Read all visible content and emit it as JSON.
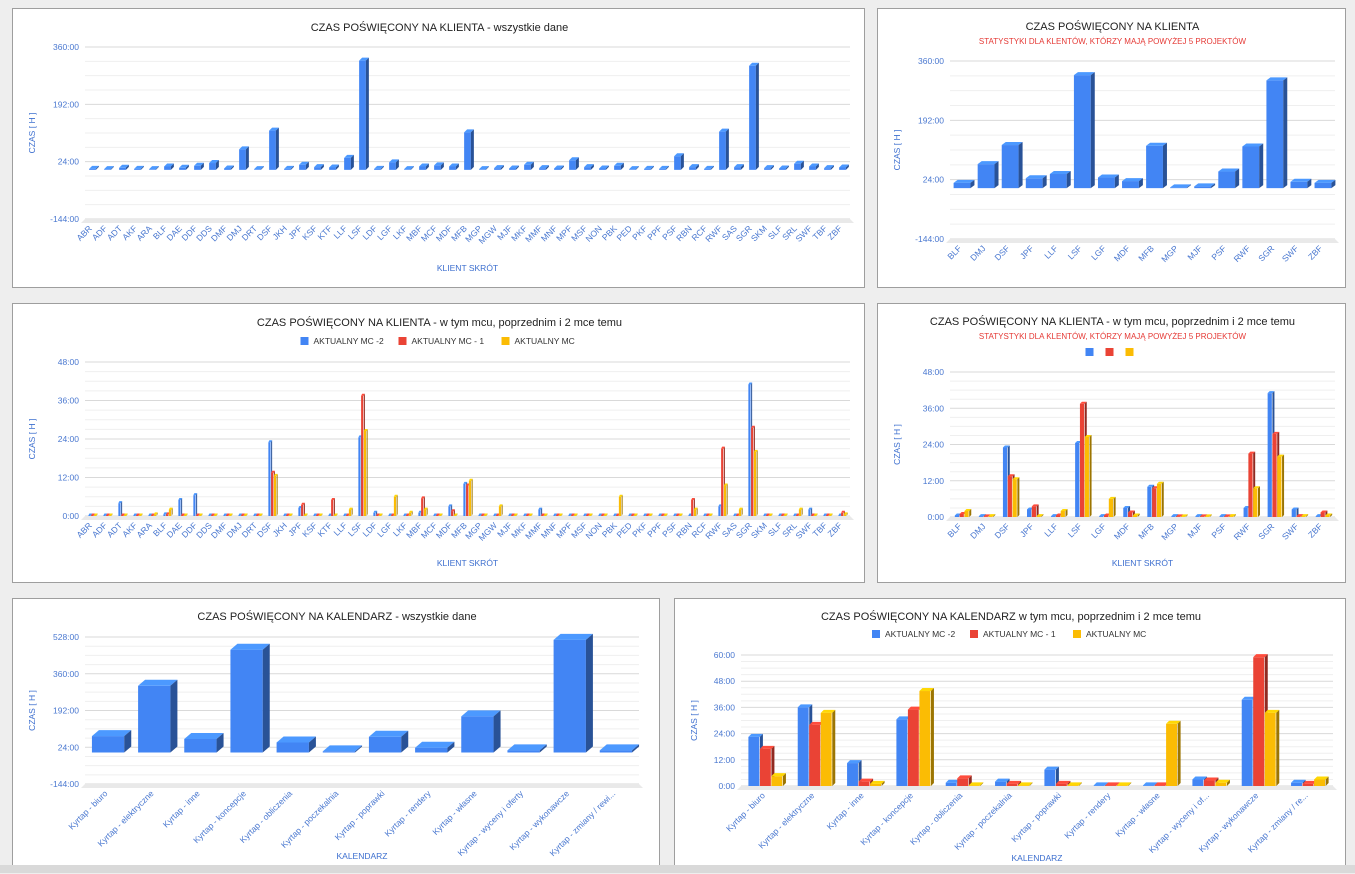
{
  "chart_data": [
    {
      "id": "c1",
      "type": "bar",
      "title": "CZAS POŚWIĘCONY NA KLIENTA - wszystkie dane",
      "subtitle": "",
      "xlabel": "KLIENT SKRÓT",
      "ylabel": "CZAS [ H ]",
      "yticks": [
        "-144:00",
        "24:00",
        "192:00",
        "360:00"
      ],
      "ylim": [
        -144,
        360
      ],
      "categories": [
        "ABR",
        "ADF",
        "ADT",
        "AKF",
        "ARA",
        "BLF",
        "DAE",
        "DDF",
        "DDS",
        "DMF",
        "DMJ",
        "DRT",
        "DSF",
        "JKH",
        "JPF",
        "KSF",
        "KTF",
        "LLF",
        "LSF",
        "LDF",
        "LGF",
        "LKF",
        "MBF",
        "MCF",
        "MDF",
        "MFB",
        "MGP",
        "MGW",
        "MJF",
        "MKF",
        "MMF",
        "MNF",
        "MPF",
        "MSF",
        "NON",
        "PBK",
        "PED",
        "PKF",
        "PPF",
        "PSF",
        "RBN",
        "RCF",
        "RWF",
        "SAS",
        "SGR",
        "SKM",
        "SLF",
        "SRL",
        "SWF",
        "TBF",
        "ZBF"
      ],
      "series": [
        {
          "color": "#4285f4",
          "values": [
            3,
            2,
            6,
            3,
            2,
            10,
            6,
            12,
            20,
            4,
            60,
            2,
            115,
            3,
            15,
            8,
            7,
            35,
            320,
            3,
            22,
            2,
            10,
            13,
            10,
            110,
            2,
            5,
            4,
            15,
            5,
            4,
            28,
            8,
            4,
            12,
            2,
            3,
            3,
            40,
            8,
            3,
            112,
            8,
            305,
            5,
            4,
            18,
            10,
            5,
            7
          ]
        }
      ],
      "labels": {
        "title": "t1",
        "subtitle": "s1",
        "xlabel": "x1",
        "ylabel": "y1"
      }
    },
    {
      "id": "c2",
      "type": "bar",
      "title": "CZAS POŚWIĘCONY NA KLIENTA",
      "subtitle": "STATYSTYKI DLA KLENTÓW, KTÓRZY MAJĄ POWYŻEJ 5 PROJEKTÓW",
      "xlabel": "",
      "ylabel": "CZAS [ H ]",
      "yticks": [
        "-144:00",
        "24:00",
        "192:00",
        "360:00"
      ],
      "ylim": [
        -144,
        360
      ],
      "categories": [
        "BLF",
        "DMJ",
        "DSF",
        "JPF",
        "LLF",
        "LSF",
        "LGF",
        "MDF",
        "MFB",
        "MGP",
        "MJF",
        "PSF",
        "RWF",
        "SGR",
        "SWF",
        "ZBF"
      ],
      "series": [
        {
          "color": "#4285f4",
          "values": [
            15,
            68,
            122,
            28,
            40,
            320,
            30,
            20,
            120,
            2,
            5,
            47,
            118,
            305,
            18,
            15
          ]
        }
      ]
    },
    {
      "id": "c3",
      "type": "bar",
      "title": "CZAS POŚWIĘCONY NA KLIENTA -  w tym mcu, poprzednim i 2 mce temu",
      "subtitle": "",
      "xlabel": "KLIENT SKRÓT",
      "ylabel": "CZAS [ H ]",
      "yticks": [
        "0:00",
        "12:00",
        "24:00",
        "36:00",
        "48:00"
      ],
      "ylim": [
        0,
        48
      ],
      "categories": [
        "ABR",
        "ADF",
        "ADT",
        "AKF",
        "ARA",
        "BLF",
        "DAE",
        "DDF",
        "DDS",
        "DMF",
        "DMJ",
        "DRT",
        "DSF",
        "JKH",
        "JPF",
        "KSF",
        "KTF",
        "LLF",
        "LSF",
        "LDF",
        "LGF",
        "LKF",
        "MBF",
        "MCF",
        "MDF",
        "MFB",
        "MGP",
        "MGW",
        "MJF",
        "MKF",
        "MMF",
        "MNF",
        "MPF",
        "MSF",
        "NON",
        "PBK",
        "PED",
        "PKF",
        "PPF",
        "PSF",
        "RBN",
        "RCF",
        "RWF",
        "SAS",
        "SGR",
        "SKM",
        "SLF",
        "SRL",
        "SWF",
        "TBF",
        "ZBF"
      ],
      "legend": [
        "AKTUALNY MC -2",
        "AKTUALNY MC - 1",
        "AKTUALNY MC"
      ],
      "series": [
        {
          "name": "AKTUALNY MC -2",
          "color": "#4285f4",
          "values": [
            0,
            0,
            4,
            0,
            0,
            0.5,
            5,
            6.5,
            0,
            0,
            0,
            0,
            23,
            0,
            2.5,
            0,
            0,
            0,
            24.5,
            1,
            0,
            0,
            1,
            0,
            3,
            10,
            0,
            0,
            0,
            0,
            2,
            0,
            0,
            0,
            0,
            0,
            0,
            0,
            0,
            0,
            0,
            0,
            3,
            0,
            41,
            0,
            0,
            0,
            2,
            0,
            0
          ]
        },
        {
          "name": "AKTUALNY MC - 1",
          "color": "#ea4335",
          "values": [
            0,
            0,
            0,
            0,
            0,
            0.5,
            0,
            0,
            0,
            0,
            0,
            0,
            13.5,
            0,
            3.5,
            0,
            5,
            0,
            37.5,
            0,
            0,
            0,
            5.5,
            0,
            1.5,
            9.5,
            0,
            0,
            0,
            0,
            0,
            0,
            0,
            0,
            0,
            0,
            0,
            0,
            0,
            0,
            5,
            0,
            21,
            0,
            27.5,
            0,
            0,
            0,
            0,
            0,
            1
          ]
        },
        {
          "name": "AKTUALNY MC",
          "color": "#fbbc04",
          "values": [
            0,
            0,
            0,
            0,
            0.5,
            2,
            0,
            0,
            0,
            0,
            0,
            0,
            12.5,
            0,
            0,
            0,
            0,
            2,
            26.5,
            0,
            6,
            1,
            2,
            0,
            0,
            11,
            0,
            3,
            0,
            0,
            0,
            0,
            0,
            0,
            0,
            6,
            0,
            0,
            0,
            0,
            2,
            0,
            9.5,
            2,
            20,
            0,
            0,
            2,
            0,
            0,
            0.5
          ]
        }
      ]
    },
    {
      "id": "c4",
      "type": "bar",
      "title": "CZAS POŚWIĘCONY NA KLIENTA -  w tym mcu, poprzednim i 2 mce temu",
      "subtitle": "STATYSTYKI DLA KLENTÓW, KTÓRZY MAJĄ POWYŻEJ 5 PROJEKTÓW",
      "xlabel": "KLIENT SKRÓT",
      "ylabel": "CZAS [ H ]",
      "yticks": [
        "0:00",
        "12:00",
        "24:00",
        "36:00",
        "48:00"
      ],
      "ylim": [
        0,
        48
      ],
      "categories": [
        "BLF",
        "DMJ",
        "DSF",
        "JPF",
        "LLF",
        "LSF",
        "LGF",
        "MDF",
        "MFB",
        "MGP",
        "MJF",
        "PSF",
        "RWF",
        "SGR",
        "SWF",
        "ZBF"
      ],
      "legend": [
        "",
        "",
        ""
      ],
      "series": [
        {
          "color": "#4285f4",
          "values": [
            0.5,
            0.3,
            23,
            2.5,
            0.3,
            24.5,
            0.3,
            3,
            10,
            0.3,
            0.3,
            0.3,
            3,
            41,
            2.5,
            0.3
          ]
        },
        {
          "color": "#ea4335",
          "values": [
            1,
            0.2,
            13.5,
            3.5,
            0.5,
            37.5,
            0.5,
            1.5,
            9.5,
            0.2,
            0.2,
            0.2,
            21,
            27.5,
            0.3,
            1.5
          ]
        },
        {
          "color": "#fbbc04",
          "values": [
            2,
            0.3,
            12.5,
            0.3,
            2,
            26.5,
            6,
            0.5,
            11,
            0.2,
            0.2,
            0.3,
            9.5,
            20,
            0.3,
            0.5
          ]
        }
      ]
    },
    {
      "id": "c5",
      "type": "bar",
      "title": "CZAS POŚWIĘCONY NA KALENDARZ  - wszystkie dane",
      "subtitle": "",
      "xlabel": "KALENDARZ",
      "ylabel": "CZAS [ H ]",
      "yticks": [
        "-144:00",
        "24:00",
        "192:00",
        "360:00",
        "528:00"
      ],
      "ylim": [
        -144,
        528
      ],
      "categories": [
        "Kyrtap - biuro",
        "Kyrtap - elektryczne",
        "Kyrtap - inne",
        "Kyrtap - koncepcje",
        "Kyrtap - obliczenia",
        "Kyrtap - poczekalnia",
        "Kyrtap - poprawki",
        "Kyrtap - rendery",
        "Kyrtap - własne",
        "Kyrtap - wyceny i oferty",
        "Kyrtap - wykonawcze",
        "Kyrtap - zmiany / rewi..."
      ],
      "series": [
        {
          "color": "#4285f4",
          "values": [
            75,
            305,
            62,
            470,
            46,
            5,
            72,
            22,
            165,
            10,
            515,
            10
          ]
        }
      ]
    },
    {
      "id": "c6",
      "type": "bar",
      "title": "CZAS POŚWIĘCONY NA KALENDARZ w tym mcu, poprzednim i 2 mce temu",
      "subtitle": "",
      "xlabel": "KALENDARZ",
      "ylabel": "CZAS [ H ]",
      "yticks": [
        "0:00",
        "12:00",
        "24:00",
        "36:00",
        "48:00",
        "60:00"
      ],
      "ylim": [
        0,
        60
      ],
      "categories": [
        "Kyrtap - biuro",
        "Kyrtap - elektryczne",
        "Kyrtap - inne",
        "Kyrtap - koncepcje",
        "Kyrtap - obliczenia",
        "Kyrtap - poczekalnia",
        "Kyrtap - poprawki",
        "Kyrtap - rendery",
        "Kyrtap - własne",
        "Kyrtap - wyceny i of...",
        "Kyrtap - wykonawcze",
        "Kyrtap - zmiany / re..."
      ],
      "legend": [
        "AKTUALNY MC -2",
        "AKTUALNY MC - 1",
        "AKTUALNY MC"
      ],
      "series": [
        {
          "name": "AKTUALNY MC -2",
          "color": "#4285f4",
          "values": [
            22.5,
            36,
            10.5,
            30.5,
            1.5,
            2,
            7.5,
            0.3,
            0.3,
            3,
            39.5,
            1.5
          ]
        },
        {
          "name": "AKTUALNY MC - 1",
          "color": "#ea4335",
          "values": [
            17,
            28,
            2,
            35,
            3.5,
            1,
            1,
            0.3,
            0.3,
            2.5,
            59,
            1
          ]
        },
        {
          "name": "AKTUALNY MC",
          "color": "#fbbc04",
          "values": [
            4.5,
            33.5,
            1,
            43.5,
            0.3,
            0.3,
            0.3,
            0.3,
            28.5,
            1.5,
            33.5,
            3
          ]
        }
      ]
    }
  ]
}
